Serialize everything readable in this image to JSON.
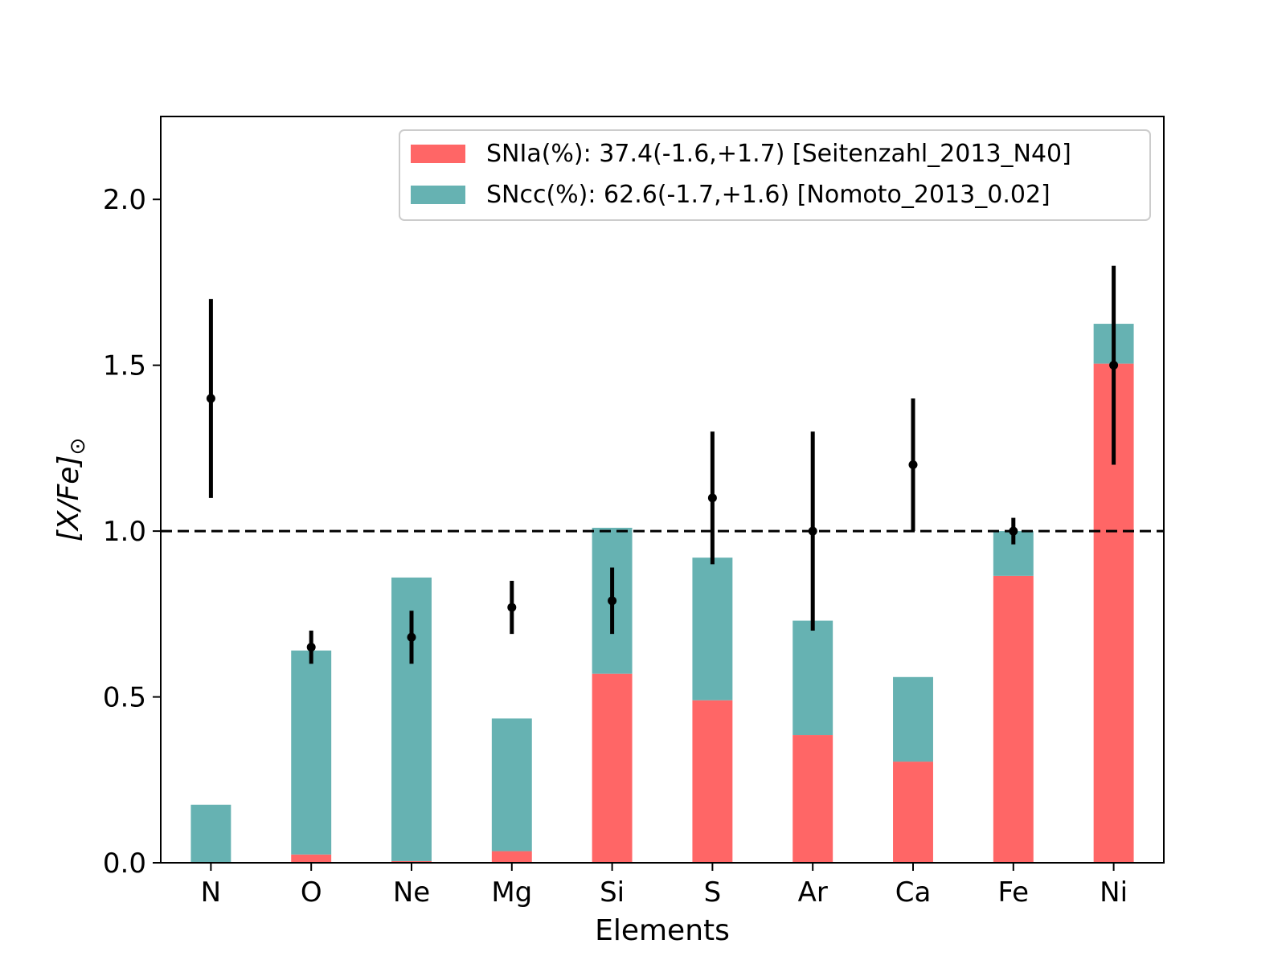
{
  "chart_data": {
    "type": "bar",
    "stacked": true,
    "categories": [
      "N",
      "O",
      "Ne",
      "Mg",
      "Si",
      "S",
      "Ar",
      "Ca",
      "Fe",
      "Ni"
    ],
    "series": [
      {
        "name": "SNIa(%): 37.4(-1.6,+1.7) [Seitenzahl_2013_N40]",
        "color": "#ff6666",
        "values": [
          0.0,
          0.025,
          0.005,
          0.035,
          0.57,
          0.49,
          0.385,
          0.305,
          0.865,
          1.505
        ]
      },
      {
        "name": "SNcc(%): 62.6(-1.7,+1.6) [Nomoto_2013_0.02]",
        "color": "#66b2b2",
        "values": [
          0.175,
          0.615,
          0.855,
          0.4,
          0.44,
          0.43,
          0.345,
          0.255,
          0.135,
          0.12
        ]
      }
    ],
    "observed": {
      "values": [
        1.4,
        0.65,
        0.68,
        0.77,
        0.79,
        1.1,
        1.0,
        1.2,
        1.0,
        1.5
      ],
      "lower": [
        1.1,
        0.6,
        0.6,
        0.69,
        0.69,
        0.9,
        0.7,
        1.0,
        0.96,
        1.2
      ],
      "upper": [
        1.7,
        0.7,
        0.76,
        0.85,
        0.89,
        1.3,
        1.3,
        1.4,
        1.04,
        1.8
      ],
      "color": "#000000"
    },
    "reference_line": {
      "y": 1.0,
      "style": "dashed",
      "color": "#000000"
    },
    "title": "",
    "xlabel": "Elements",
    "ylabel_main": "[X/Fe]",
    "ylabel_sub": "⊙",
    "ylim": [
      0,
      2.25
    ],
    "yticks": [
      0.0,
      0.5,
      1.0,
      1.5,
      2.0
    ],
    "ytick_labels": [
      "0.0",
      "0.5",
      "1.0",
      "1.5",
      "2.0"
    ],
    "grid": false,
    "legend_position": "top-right"
  }
}
